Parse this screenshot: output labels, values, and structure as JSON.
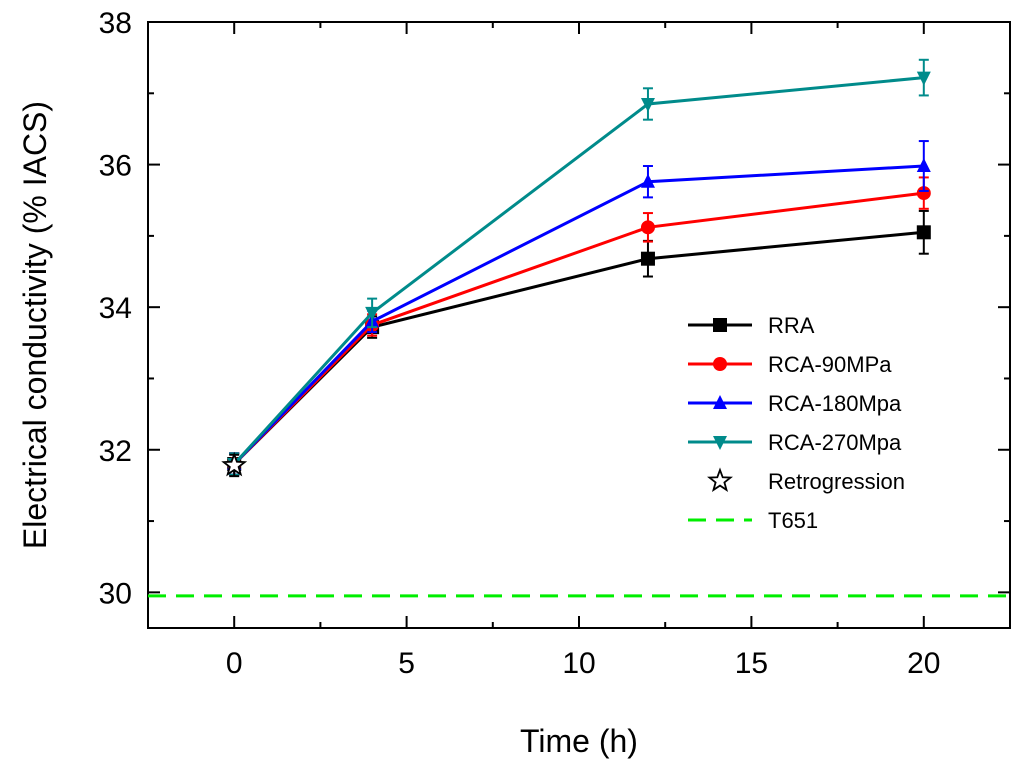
{
  "chart_data": {
    "type": "line",
    "xlabel": "Time (h)",
    "ylabel": "Electrical conductivity (% IACS)",
    "xlim": [
      -2.5,
      22.5
    ],
    "ylim": [
      29.5,
      38
    ],
    "x_ticks": [
      0,
      5,
      10,
      15,
      20
    ],
    "y_ticks": [
      30,
      32,
      34,
      36,
      38
    ],
    "legend_position": "right",
    "grid": false,
    "series": [
      {
        "name": "RRA",
        "color": "#000000",
        "marker": "square",
        "x": [
          0,
          4,
          12,
          20
        ],
        "y": [
          31.8,
          33.72,
          34.68,
          35.05
        ],
        "err": [
          0.15,
          0.15,
          0.25,
          0.3
        ]
      },
      {
        "name": "RCA-90MPa",
        "color": "#ff0000",
        "marker": "circle",
        "x": [
          0,
          4,
          12,
          20
        ],
        "y": [
          31.8,
          33.75,
          35.12,
          35.6
        ],
        "err": [
          0.15,
          0.15,
          0.2,
          0.22
        ]
      },
      {
        "name": "RCA-180Mpa",
        "color": "#0000ff",
        "marker": "triangle-up",
        "x": [
          0,
          4,
          12,
          20
        ],
        "y": [
          31.8,
          33.8,
          35.76,
          35.98
        ],
        "err": [
          0.15,
          0.15,
          0.22,
          0.35
        ]
      },
      {
        "name": "RCA-270Mpa",
        "color": "#008b8b",
        "marker": "triangle-down",
        "x": [
          0,
          4,
          12,
          20
        ],
        "y": [
          31.8,
          33.92,
          36.85,
          37.22
        ],
        "err": [
          0.15,
          0.2,
          0.22,
          0.25
        ]
      }
    ],
    "points": [
      {
        "name": "Retrogression",
        "x": 0,
        "y": 31.78,
        "err": 0.15,
        "marker": "star",
        "color": "#000000"
      }
    ],
    "reference_lines": [
      {
        "name": "T651",
        "y": 29.95,
        "color": "#00ee00",
        "style": "dashed"
      }
    ]
  }
}
